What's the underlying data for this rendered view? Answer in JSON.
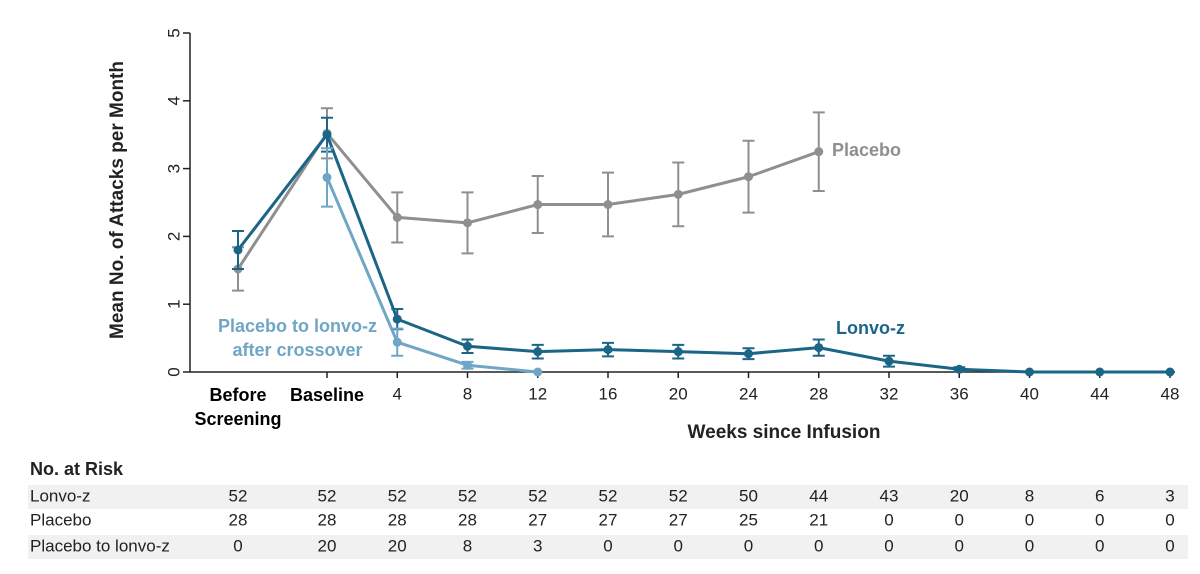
{
  "chart_data": {
    "type": "line",
    "y_label": "Mean No. of Attacks per Month",
    "x_label": "Weeks since Infusion",
    "categories": [
      "Before Screening",
      "Baseline",
      4,
      8,
      12,
      16,
      20,
      24,
      28,
      32,
      36,
      40,
      44,
      48
    ],
    "ylim": [
      0,
      5
    ],
    "yticks": [
      0,
      1,
      2,
      3,
      4,
      5
    ],
    "series": [
      {
        "name": "Placebo",
        "color": "#8f8f8f",
        "values": [
          1.52,
          3.52,
          2.28,
          2.2,
          2.47,
          2.47,
          2.62,
          2.88,
          3.25,
          null,
          null,
          null,
          null,
          null
        ],
        "errors": [
          0.32,
          0.37,
          0.37,
          0.45,
          0.42,
          0.47,
          0.47,
          0.53,
          0.58,
          null,
          null,
          null,
          null,
          null
        ]
      },
      {
        "name": "Lonvo-z",
        "color": "#1b6587",
        "values": [
          1.8,
          3.5,
          0.78,
          0.38,
          0.3,
          0.33,
          0.3,
          0.27,
          0.36,
          0.16,
          0.04,
          0,
          0,
          0
        ],
        "errors": [
          0.28,
          0.25,
          0.15,
          0.1,
          0.1,
          0.1,
          0.1,
          0.08,
          0.12,
          0.08,
          0.03,
          0,
          0,
          0
        ]
      },
      {
        "name": "Placebo to lonvo-z after crossover",
        "color": "#6fa6c6",
        "values": [
          null,
          2.87,
          0.44,
          0.1,
          0,
          null,
          null,
          null,
          null,
          null,
          null,
          null,
          null,
          null
        ],
        "errors": [
          null,
          0.43,
          0.2,
          0.05,
          0,
          null,
          null,
          null,
          null,
          null,
          null,
          null,
          null,
          null
        ]
      }
    ]
  },
  "at_risk": {
    "title": "No. at Risk",
    "rows": [
      {
        "name": "Lonvo-z",
        "values": [
          52,
          52,
          52,
          52,
          52,
          52,
          52,
          50,
          44,
          43,
          20,
          8,
          6,
          3
        ]
      },
      {
        "name": "Placebo",
        "values": [
          28,
          28,
          28,
          28,
          27,
          27,
          27,
          25,
          21,
          0,
          0,
          0,
          0,
          0
        ]
      },
      {
        "name": "Placebo to lonvo-z",
        "values": [
          0,
          20,
          20,
          8,
          3,
          0,
          0,
          0,
          0,
          0,
          0,
          0,
          0,
          0
        ]
      }
    ]
  }
}
